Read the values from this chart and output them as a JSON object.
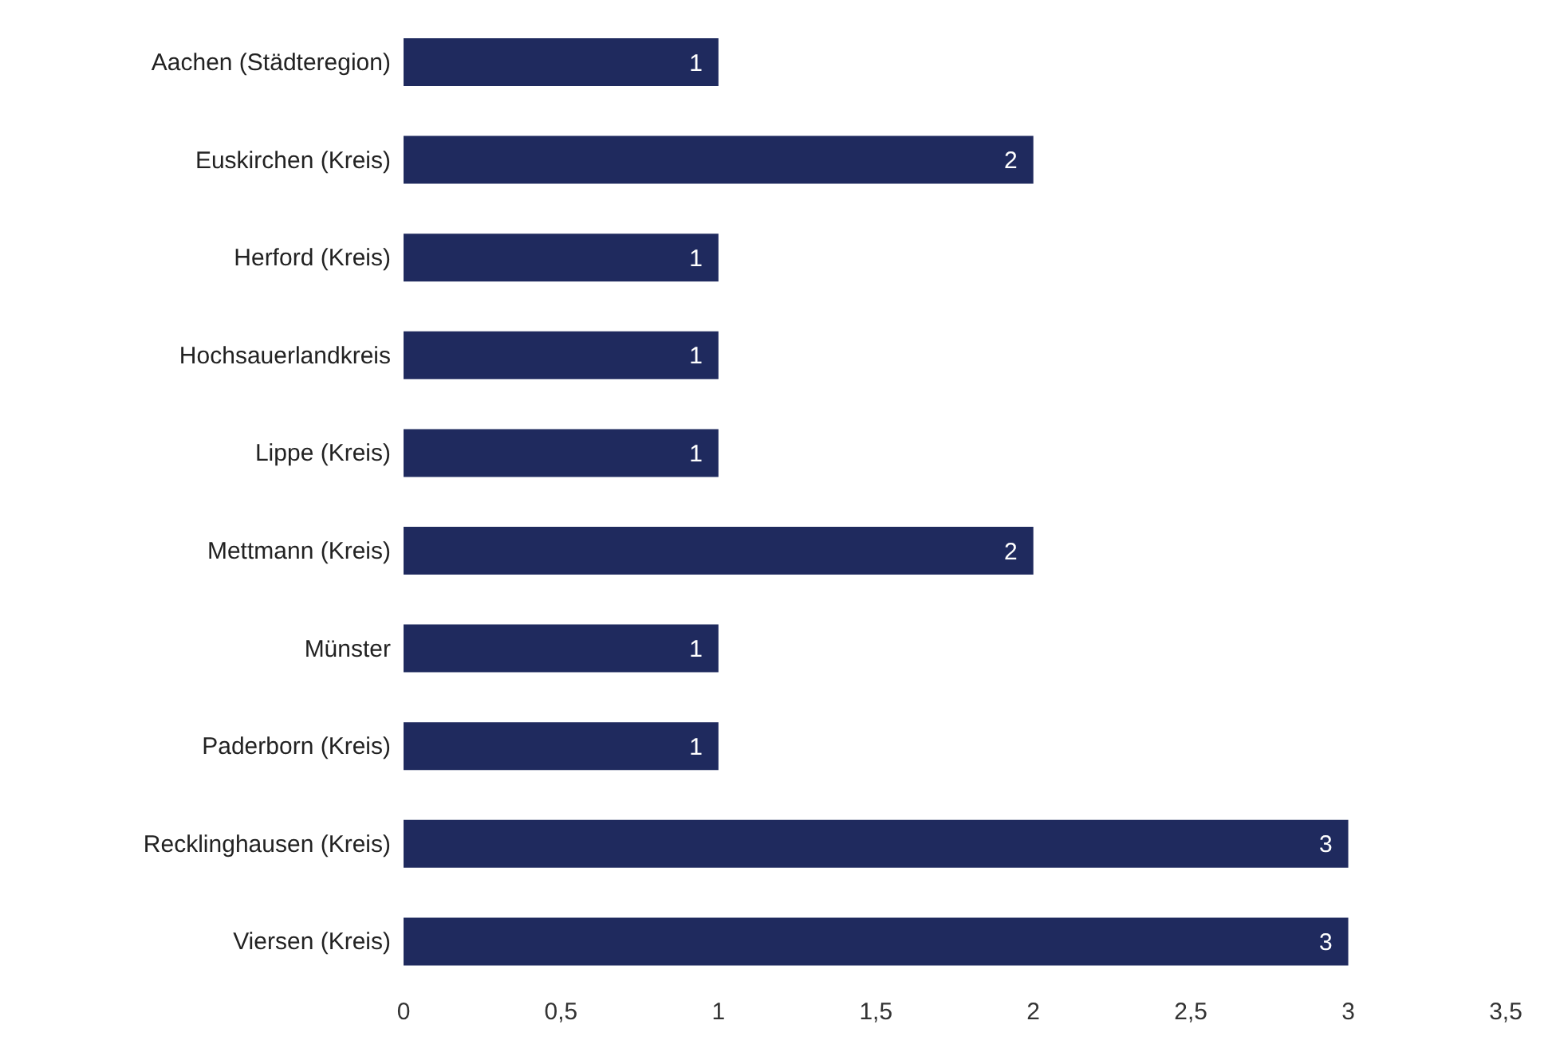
{
  "chart_data": {
    "type": "bar",
    "orientation": "horizontal",
    "categories": [
      "Aachen (Städteregion)",
      "Euskirchen (Kreis)",
      "Herford (Kreis)",
      "Hochsauerlandkreis",
      "Lippe (Kreis)",
      "Mettmann (Kreis)",
      "Münster",
      "Paderborn (Kreis)",
      "Recklinghausen (Kreis)",
      "Viersen (Kreis)"
    ],
    "values": [
      1,
      2,
      1,
      1,
      1,
      2,
      1,
      1,
      3,
      3
    ],
    "color": "#1f2a5e",
    "xlim": [
      0,
      3.5
    ],
    "xticks": [
      0,
      {
        "value": 0.5,
        "label": "0,5"
      },
      1,
      {
        "value": 1.5,
        "label": "1,5"
      },
      2,
      {
        "value": 2.5,
        "label": "2,5"
      },
      3,
      {
        "value": 3.5,
        "label": "3,5"
      }
    ],
    "data_labels": true
  }
}
